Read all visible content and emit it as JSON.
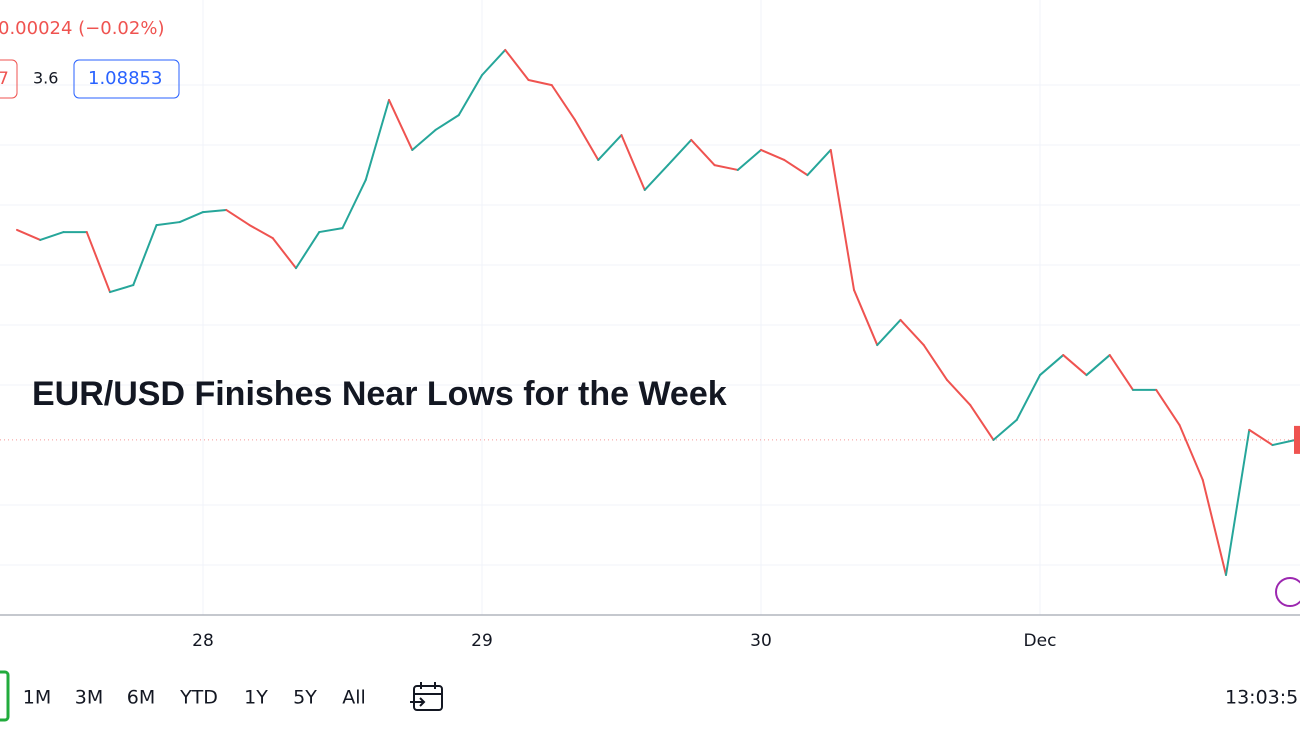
{
  "header": {
    "change": "0.00024 (−0.02%)",
    "badge": "7",
    "spread": "3.6",
    "price": "1.08853"
  },
  "chart_data": {
    "type": "line",
    "title": "EUR/USD Finishes Near Lows for the Week",
    "categories": [
      null,
      null,
      null,
      null,
      null,
      null,
      null,
      null,
      "28",
      null,
      null,
      null,
      null,
      null,
      null,
      null,
      null,
      null,
      null,
      null,
      "29",
      null,
      null,
      null,
      null,
      null,
      null,
      null,
      null,
      null,
      null,
      null,
      "30",
      null,
      null,
      null,
      null,
      null,
      null,
      null,
      null,
      null,
      null,
      null,
      "Dec",
      null,
      null,
      null,
      null,
      null,
      null,
      null,
      null,
      null,
      null,
      null
    ],
    "values": [
      1.0956,
      1.09527,
      1.09553,
      1.09553,
      1.09355,
      1.09378,
      1.09576,
      1.09586,
      1.09619,
      1.09626,
      1.09576,
      1.09533,
      1.09434,
      1.09553,
      1.09566,
      1.09725,
      1.09989,
      1.09824,
      1.0989,
      1.09939,
      1.10071,
      1.10154,
      1.10055,
      1.10038,
      1.09923,
      1.09791,
      1.09873,
      1.09692,
      1.09774,
      1.09857,
      1.09774,
      1.09758,
      1.09824,
      1.09791,
      1.09741,
      1.09824,
      1.09362,
      1.0918,
      1.09263,
      1.0918,
      1.09065,
      1.08982,
      1.08867,
      1.08933,
      1.09081,
      1.09147,
      1.09081,
      1.09147,
      1.09032,
      1.09032,
      1.08916,
      1.08735,
      1.08421,
      1.089,
      1.0885,
      1.08867
    ],
    "ylim": [
      1.08289,
      1.10319
    ],
    "up_color": "#26a69a",
    "down_color": "#ef5350",
    "grid": true
  },
  "toolbar": {
    "ranges": [
      "1M",
      "3M",
      "6M",
      "YTD",
      "1Y",
      "5Y",
      "All"
    ],
    "time": "13:03:5"
  }
}
